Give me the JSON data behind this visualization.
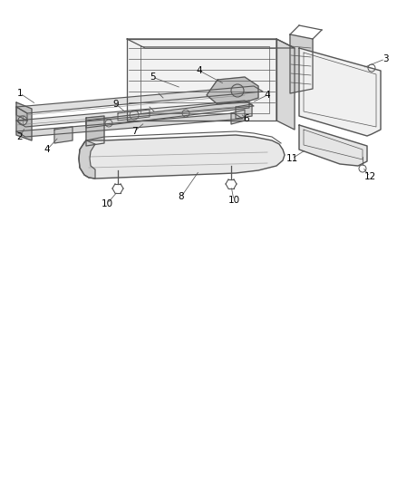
{
  "background_color": "#ffffff",
  "line_color": "#555555",
  "fig_width": 4.38,
  "fig_height": 5.33,
  "dpi": 100
}
